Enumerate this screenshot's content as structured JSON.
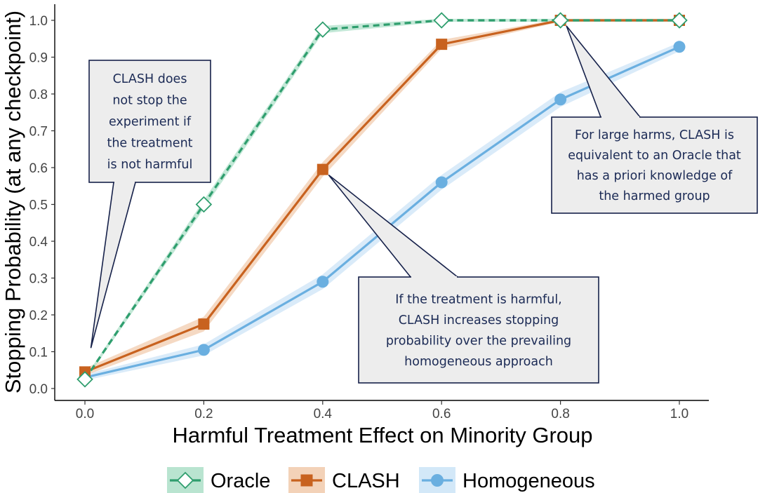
{
  "chart_data": {
    "type": "line",
    "title": "",
    "xlabel": "Harmful Treatment Effect on Minority Group",
    "ylabel": "Stopping Probability (at any checkpoint)",
    "x": [
      0.0,
      0.2,
      0.4,
      0.6,
      0.8,
      1.0
    ],
    "x_tick_labels": [
      "0.0",
      "0.2",
      "0.4",
      "0.6",
      "0.8",
      "1.0"
    ],
    "y_tick_labels": [
      "0.0",
      "0.1",
      "0.2",
      "0.3",
      "0.4",
      "0.5",
      "0.6",
      "0.7",
      "0.8",
      "0.9",
      "1.0"
    ],
    "xlim": [
      -0.02,
      1.02
    ],
    "ylim": [
      -0.02,
      1.04
    ],
    "grid": false,
    "legend_position": "bottom",
    "series": [
      {
        "name": "Oracle",
        "values": [
          0.025,
          0.5,
          0.975,
          1.0,
          1.0,
          1.0
        ],
        "ci_half_width": [
          0.005,
          0.012,
          0.01,
          0.004,
          0.004,
          0.004
        ],
        "color": "#2f9e6e",
        "band_color": "#b9e4d0",
        "line_style": "dashed",
        "marker": "diamond-open"
      },
      {
        "name": "CLASH",
        "values": [
          0.045,
          0.175,
          0.595,
          0.935,
          1.0,
          1.0
        ],
        "ci_half_width": [
          0.01,
          0.02,
          0.02,
          0.012,
          0.004,
          0.004
        ],
        "color": "#c8621f",
        "band_color": "#f3d2b8",
        "line_style": "solid",
        "marker": "square"
      },
      {
        "name": "Homogeneous",
        "values": [
          0.03,
          0.105,
          0.29,
          0.56,
          0.785,
          0.928
        ],
        "ci_half_width": [
          0.008,
          0.015,
          0.02,
          0.02,
          0.02,
          0.012
        ],
        "color": "#6aafe0",
        "band_color": "#d3e8f8",
        "line_style": "solid",
        "marker": "circle"
      }
    ],
    "annotations": [
      {
        "lines": [
          "CLASH does",
          "not stop the",
          "experiment if",
          "the treatment",
          "is not harmful"
        ],
        "points_to": [
          0.01,
          0.11
        ]
      },
      {
        "lines": [
          "For large harms, CLASH is",
          "equivalent to an Oracle that",
          "has a priori knowledge of",
          "the harmed group"
        ],
        "points_to": [
          0.81,
          0.985
        ]
      },
      {
        "lines": [
          "If the treatment is harmful,",
          "CLASH increases stopping",
          "probability over the prevailing",
          "homogeneous approach"
        ],
        "points_to": [
          0.41,
          0.58
        ]
      }
    ]
  }
}
